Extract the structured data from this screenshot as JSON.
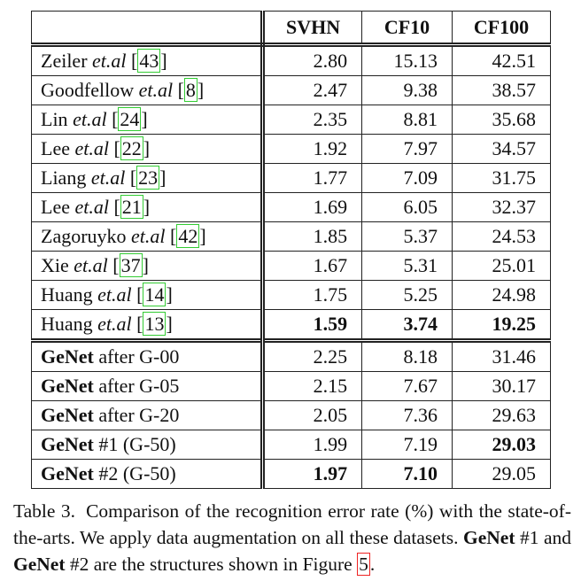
{
  "table": {
    "columns": [
      "SVHN",
      "CF10",
      "CF100"
    ],
    "brackets": [
      "[",
      "]"
    ],
    "sections": [
      [
        {
          "name": "Zeiler",
          "etal": "et.al",
          "ref": "43",
          "values": [
            "2.80",
            "15.13",
            "42.51"
          ]
        },
        {
          "name": "Goodfellow",
          "etal": "et.al",
          "ref": "8",
          "values": [
            "2.47",
            "9.38",
            "38.57"
          ]
        },
        {
          "name": "Lin",
          "etal": "et.al",
          "ref": "24",
          "values": [
            "2.35",
            "8.81",
            "35.68"
          ]
        },
        {
          "name": "Lee",
          "etal": "et.al",
          "ref": "22",
          "values": [
            "1.92",
            "7.97",
            "34.57"
          ]
        },
        {
          "name": "Liang",
          "etal": "et.al",
          "ref": "23",
          "values": [
            "1.77",
            "7.09",
            "31.75"
          ]
        },
        {
          "name": "Lee",
          "etal": "et.al",
          "ref": "21",
          "values": [
            "1.69",
            "6.05",
            "32.37"
          ]
        },
        {
          "name": "Zagoruyko",
          "etal": "et.al",
          "ref": "42",
          "values": [
            "1.85",
            "5.37",
            "24.53"
          ]
        },
        {
          "name": "Xie",
          "etal": "et.al",
          "ref": "37",
          "values": [
            "1.67",
            "5.31",
            "25.01"
          ]
        },
        {
          "name": "Huang",
          "etal": "et.al",
          "ref": "14",
          "values": [
            "1.75",
            "5.25",
            "24.98"
          ]
        },
        {
          "name": "Huang",
          "etal": "et.al",
          "ref": "13",
          "values": [
            "1.59",
            "3.74",
            "19.25"
          ],
          "bold": [
            0,
            1,
            2
          ]
        }
      ],
      [
        {
          "name": "GeNet",
          "suffix": "after G-00",
          "values": [
            "2.25",
            "8.18",
            "31.46"
          ]
        },
        {
          "name": "GeNet",
          "suffix": "after G-05",
          "values": [
            "2.15",
            "7.67",
            "30.17"
          ]
        },
        {
          "name": "GeNet",
          "suffix": "after G-20",
          "values": [
            "2.05",
            "7.36",
            "29.63"
          ]
        },
        {
          "name": "GeNet",
          "suffix": "#1 (G-50)",
          "values": [
            "1.99",
            "7.19",
            "29.03"
          ],
          "bold": [
            2
          ]
        },
        {
          "name": "GeNet",
          "suffix": "#2 (G-50)",
          "values": [
            "1.97",
            "7.10",
            "29.05"
          ],
          "bold": [
            0,
            1
          ]
        }
      ]
    ]
  },
  "caption": {
    "label": "Table 3.",
    "parts": [
      {
        "text": "Comparison of the recognition error rate (%) with the state-of-the-arts. We apply data augmentation on all these datasets. "
      },
      {
        "text": "GeNet",
        "bold": true
      },
      {
        "text": " #1 and "
      },
      {
        "text": "GeNet",
        "bold": true
      },
      {
        "text": " #2 are the structures shown in Figure "
      },
      {
        "text": "5",
        "link": true
      },
      {
        "text": "."
      }
    ]
  }
}
